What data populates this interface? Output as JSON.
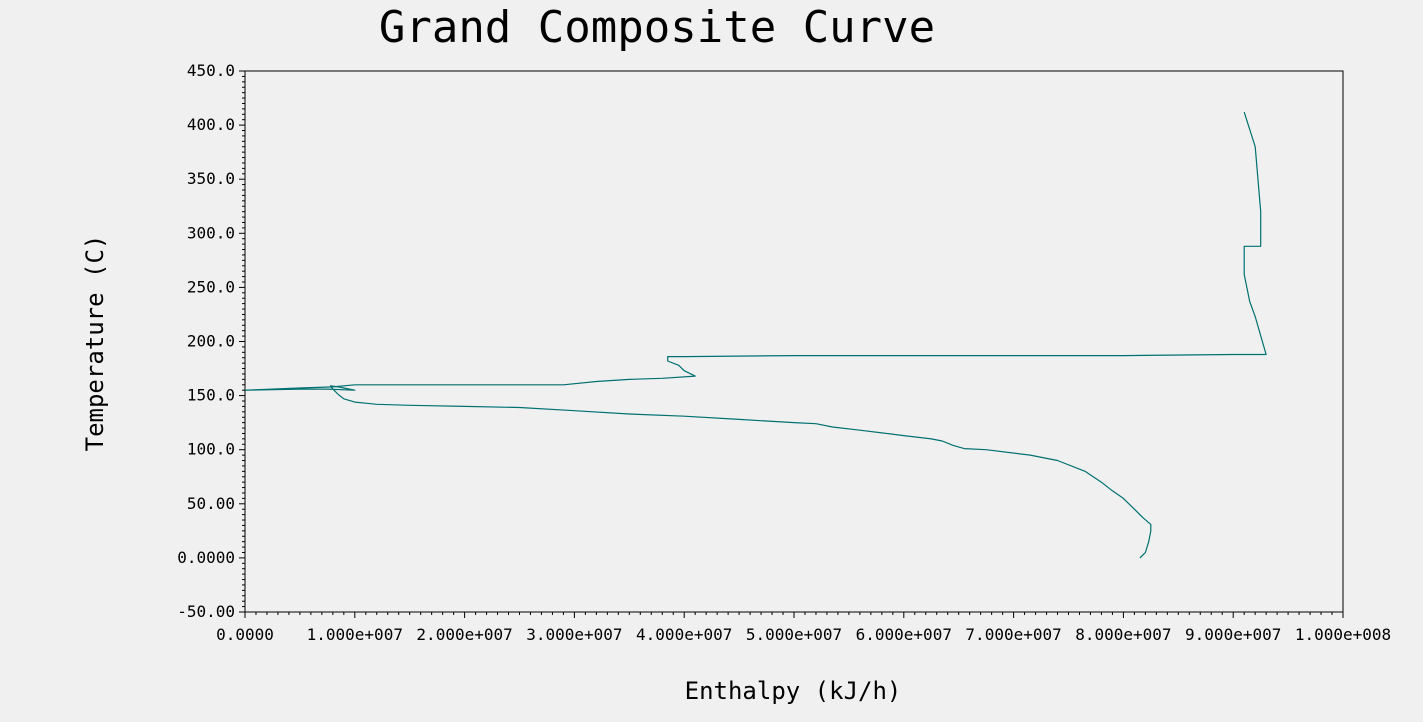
{
  "chart_data": {
    "type": "line",
    "title": "Grand Composite Curve",
    "xlabel": "Enthalpy (kJ/h)",
    "ylabel": "Temperature (C)",
    "xlim": [
      0,
      100000000
    ],
    "ylim": [
      -50,
      450
    ],
    "grid": false,
    "x_ticks": [
      0,
      10000000,
      20000000,
      30000000,
      40000000,
      50000000,
      60000000,
      70000000,
      80000000,
      90000000,
      100000000
    ],
    "x_tick_labels": [
      "0.0000",
      "1.000e+007",
      "2.000e+007",
      "3.000e+007",
      "4.000e+007",
      "5.000e+007",
      "6.000e+007",
      "7.000e+007",
      "8.000e+007",
      "9.000e+007",
      "1.000e+008"
    ],
    "y_ticks": [
      -50,
      0,
      50,
      100,
      150,
      200,
      250,
      300,
      350,
      400,
      450
    ],
    "y_tick_labels": [
      "-50.00",
      "0.0000",
      "50.00",
      "100.0",
      "150.0",
      "200.0",
      "250.0",
      "300.0",
      "350.0",
      "400.0",
      "450.0"
    ],
    "line_color": "#007070",
    "series": [
      {
        "x": [
          81500000,
          82000000,
          82300000,
          82500000,
          82500000,
          81800000,
          81000000,
          80000000,
          79000000,
          78000000,
          76500000,
          74000000,
          71500000,
          67500000,
          65500000,
          64500000,
          63500000,
          62500000,
          60000000,
          56000000,
          53500000,
          52000000,
          50000000,
          45000000,
          40000000,
          35000000,
          30000000,
          25000000,
          20000000,
          15000000,
          12000000,
          11000000,
          10000000,
          9000000,
          8500000,
          8000000,
          7800000,
          8500000,
          9000000,
          10000000,
          7500000,
          5000000,
          0
        ],
        "y": [
          0,
          5,
          15,
          25,
          31,
          37,
          45,
          55,
          62,
          70,
          80,
          90,
          95,
          100,
          101,
          104,
          108,
          110,
          113,
          118,
          121,
          124,
          125,
          128,
          131,
          133,
          136,
          139,
          140,
          141,
          142,
          143,
          144,
          147,
          151,
          156,
          159,
          158,
          157,
          155,
          156,
          156,
          155
        ],
        "segment": "lower"
      },
      {
        "x": [
          0,
          5000000,
          8000000,
          10000000,
          20000000,
          29000000,
          32000000,
          35000000,
          38000000,
          41000000,
          40000000,
          39500000,
          38500000,
          38500000,
          40000000,
          50000000,
          60000000,
          70000000,
          80000000,
          90000000,
          93000000,
          92000000,
          91500000,
          91000000,
          91000000,
          92500000,
          92500000,
          92000000,
          91000000
        ],
        "y": [
          155,
          157,
          158,
          160,
          160,
          160,
          163,
          165,
          166,
          168,
          173,
          178,
          182,
          186,
          186,
          187,
          187,
          187,
          187,
          188,
          188,
          223,
          237,
          262,
          288,
          288,
          320,
          380,
          412
        ],
        "segment": "upper"
      }
    ]
  }
}
